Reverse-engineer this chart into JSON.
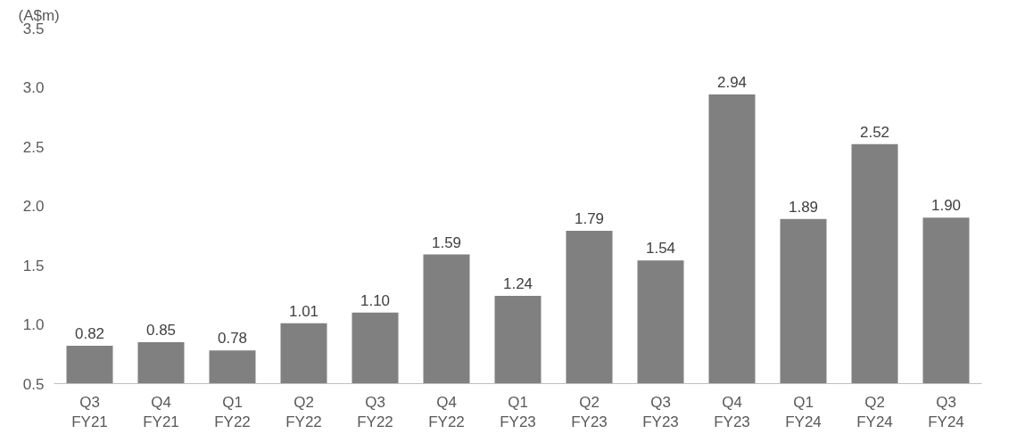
{
  "chart_data": {
    "type": "bar",
    "ylabel": "(A$m)",
    "categories": [
      "Q3\nFY21",
      "Q4\nFY21",
      "Q1\nFY22",
      "Q2\nFY22",
      "Q3\nFY22",
      "Q4\nFY22",
      "Q1\nFY23",
      "Q2\nFY23",
      "Q3\nFY23",
      "Q4\nFY23",
      "Q1\nFY24",
      "Q2\nFY24",
      "Q3\nFY24"
    ],
    "values": [
      0.82,
      0.85,
      0.78,
      1.01,
      1.1,
      1.59,
      1.24,
      1.79,
      1.54,
      2.94,
      1.89,
      2.52,
      1.9
    ],
    "value_labels": [
      "0.82",
      "0.85",
      "0.78",
      "1.01",
      "1.10",
      "1.59",
      "1.24",
      "1.79",
      "1.54",
      "2.94",
      "1.89",
      "2.52",
      "1.90"
    ],
    "color": "#808080",
    "ylim": [
      0.5,
      3.5
    ],
    "yticks": [
      0.5,
      {
        "value": 1,
        "label": "1.0"
      },
      1.5,
      {
        "value": 2,
        "label": "2.0"
      },
      2.5,
      {
        "value": 3,
        "label": "3.0"
      },
      3.5
    ],
    "grid": false
  }
}
